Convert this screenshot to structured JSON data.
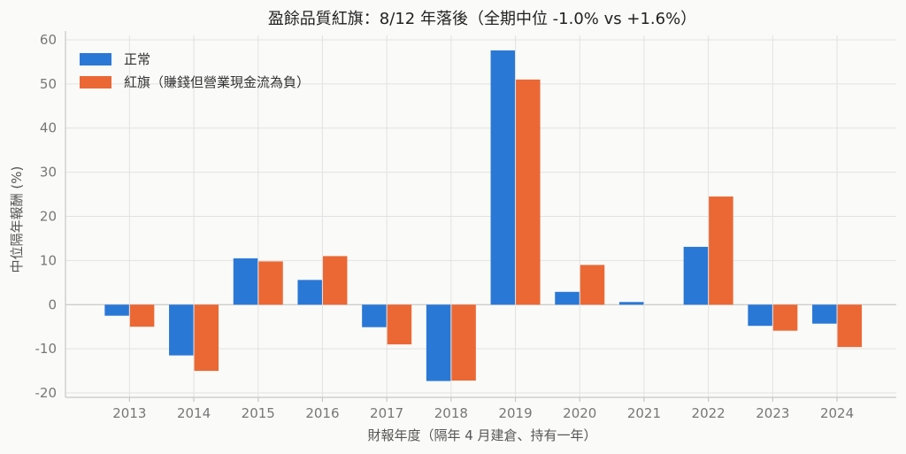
{
  "chart_data": {
    "type": "bar",
    "title": "盈餘品質紅旗：8/12 年落後（全期中位 -1.0% vs +1.6%）",
    "xlabel": "財報年度（隔年 4 月建倉、持有一年）",
    "ylabel": "中位隔年報酬 (%)",
    "categories": [
      "2013",
      "2014",
      "2015",
      "2016",
      "2017",
      "2018",
      "2019",
      "2020",
      "2021",
      "2022",
      "2023",
      "2024"
    ],
    "ylim": [
      -21,
      61
    ],
    "yticks": [
      -20,
      -10,
      0,
      10,
      20,
      30,
      40,
      50,
      60
    ],
    "grid": true,
    "legend_position": "top-left",
    "series": [
      {
        "name": "正常",
        "color": "#2a78d6",
        "values": [
          -2.5,
          -11.5,
          10.5,
          5.6,
          -5.1,
          -17.3,
          57.6,
          2.9,
          0.6,
          13.1,
          -4.8,
          -4.3
        ]
      },
      {
        "name": "紅旗（賺錢但營業現金流為負）",
        "color": "#eb6834",
        "values": [
          -5.0,
          -15.0,
          9.8,
          11.0,
          -9.0,
          -17.2,
          51.0,
          9.0,
          0.0,
          24.5,
          -5.9,
          -9.6
        ]
      }
    ]
  }
}
